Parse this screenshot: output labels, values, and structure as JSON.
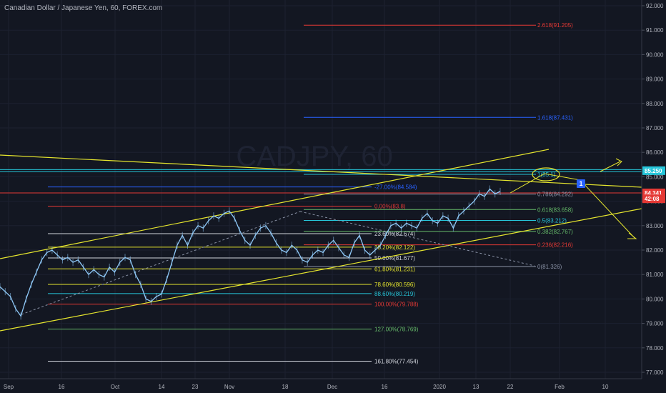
{
  "header": {
    "title": "Canadian Dollar / Japanese Yen, 60, FOREX.com"
  },
  "watermark": "CADJPY, 60",
  "colors": {
    "background": "#131722",
    "candle": "#90caf9",
    "trendline": "#e6e62e",
    "price_red": "#e53935",
    "price_cyan": "#26c6da",
    "grid": "#1c2130",
    "text": "#b2b5be"
  },
  "chart_data": {
    "type": "line",
    "symbol": "CADJPY",
    "timeframe": "60",
    "ylim": [
      76.8,
      92.2
    ],
    "y_ticks": [
      "77.000",
      "78.000",
      "79.000",
      "80.000",
      "81.000",
      "82.000",
      "83.000",
      "84.000",
      "85.000",
      "86.000",
      "87.000",
      "88.000",
      "89.000",
      "90.000",
      "91.000",
      "92.000"
    ],
    "x_ticks": [
      "Sep",
      "16",
      "Oct",
      "14",
      "23",
      "Nov",
      "18",
      "Dec",
      "16",
      "2020",
      "13",
      "22",
      "Feb",
      "10"
    ],
    "price_badges": [
      {
        "label": "85.250",
        "value": 85.25,
        "color": "#26c6da"
      },
      {
        "label": "84.341",
        "value": 84.341,
        "color": "#e53935"
      },
      {
        "label": "42:08",
        "value": 84.1,
        "color": "#e53935"
      }
    ],
    "series": [
      {
        "values": [
          80.5,
          80.3,
          80.1,
          79.6,
          79.3,
          80.0,
          80.6,
          81.1,
          81.6,
          81.9,
          82.0,
          81.8,
          81.6,
          81.7,
          81.5,
          81.6,
          81.3,
          81.0,
          81.2,
          81.0,
          80.9,
          81.3,
          81.1,
          81.5,
          81.7,
          81.6,
          81.0,
          80.6,
          80.0,
          79.9,
          80.1,
          80.2,
          80.8,
          81.5,
          82.2,
          82.6,
          82.2,
          82.7,
          83.0,
          82.9,
          83.2,
          83.4,
          83.3,
          83.5,
          83.6,
          83.3,
          82.8,
          82.4,
          82.2,
          82.6,
          82.9,
          83.0,
          82.7,
          82.3,
          82.0,
          81.9,
          82.2,
          82.0,
          81.6,
          81.5,
          81.8,
          82.0,
          81.9,
          82.2,
          82.4,
          82.1,
          81.8,
          81.7,
          82.3,
          82.6,
          82.0,
          81.8,
          82.0,
          82.2,
          82.6,
          83.0,
          83.1,
          82.9,
          83.1,
          83.0,
          82.9,
          83.3,
          83.5,
          83.2,
          83.1,
          83.4,
          83.3,
          82.9,
          83.4,
          83.6,
          83.8,
          84.0,
          84.3,
          84.2,
          84.5,
          84.3,
          84.4
        ]
      }
    ],
    "fib_left": [
      {
        "label": "-27.00%(84.584)",
        "value": 84.584,
        "color": "#2962ff"
      },
      {
        "label": "0.00%(83.8)",
        "value": 83.8,
        "color": "#e53935"
      },
      {
        "label": "23.60%(82.674)",
        "value": 82.674,
        "color": "#d1d4dc"
      },
      {
        "label": "38.20%(82.122)",
        "value": 82.122,
        "color": "#e6e62e"
      },
      {
        "label": "50.00%(81.677)",
        "value": 81.677,
        "color": "#d1d4dc"
      },
      {
        "label": "61.80%(81.231)",
        "value": 81.231,
        "color": "#e6e62e"
      },
      {
        "label": "78.60%(80.596)",
        "value": 80.596,
        "color": "#e6e62e"
      },
      {
        "label": "88.60%(80.219)",
        "value": 80.219,
        "color": "#26c6da"
      },
      {
        "label": "100.00%(79.788)",
        "value": 79.788,
        "color": "#e53935"
      },
      {
        "label": "127.00%(78.769)",
        "value": 78.769,
        "color": "#66bb6a"
      },
      {
        "label": "161.80%(77.454)",
        "value": 77.454,
        "color": "#d1d4dc"
      }
    ],
    "fib_right": [
      {
        "label": "2.618(91.205)",
        "value": 91.205,
        "color": "#e53935"
      },
      {
        "label": "1.618(87.431)",
        "value": 87.431,
        "color": "#2962ff"
      },
      {
        "label": "1(85.1)",
        "value": 85.1,
        "color": "#26c6da"
      },
      {
        "label": "0.786(84.292)",
        "value": 84.292,
        "color": "#8c94a8"
      },
      {
        "label": "0.618(83.658)",
        "value": 83.658,
        "color": "#66bb6a"
      },
      {
        "label": "0.5(83.212)",
        "value": 83.212,
        "color": "#26c6da"
      },
      {
        "label": "0.382(82.767)",
        "value": 82.767,
        "color": "#66bb6a"
      },
      {
        "label": "0.236(82.216)",
        "value": 82.216,
        "color": "#e53935"
      },
      {
        "label": "0(81.326)",
        "value": 81.326,
        "color": "#8c94a8"
      }
    ],
    "annotations": [
      {
        "label": "1"
      }
    ]
  }
}
